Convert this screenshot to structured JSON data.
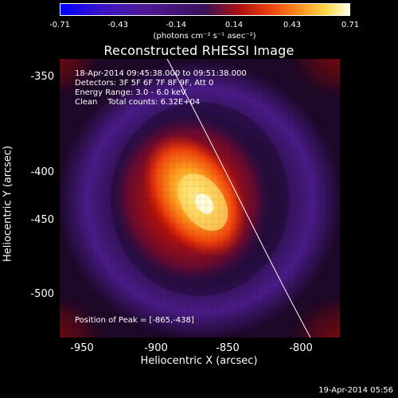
{
  "colorbar": {
    "ticks": [
      "-0.71",
      "-0.43",
      "-0.14",
      "0.14",
      "0.43",
      "0.71"
    ],
    "units": "(photons cm⁻² s⁻¹ asec⁻²)"
  },
  "title": "Reconstructed RHESSI Image",
  "info": {
    "line1": "18-Apr-2014 09:45:38.000 to 09:51:38.000",
    "line2": "Detectors: 3F 5F 6F 7F 8F 9F, Att 0",
    "line3": "Energy Range: 3.0 - 6.0 keV",
    "line4": "Clean    Total counts: 6.32E+04",
    "peak": "Position of Peak = [-865,-438]"
  },
  "axes": {
    "xlabel": "Heliocentric X (arcsec)",
    "ylabel": "Heliocentric Y (arcsec)",
    "xticks": [
      "-950",
      "-900",
      "-850",
      "-800"
    ],
    "yticks": [
      "-350",
      "-400",
      "-450",
      "-500"
    ]
  },
  "timestamp": "19-Apr-2014 05:56",
  "colors": {
    "background": "#000000",
    "foreground": "#ffffff",
    "limb_line": "#ffffff"
  }
}
